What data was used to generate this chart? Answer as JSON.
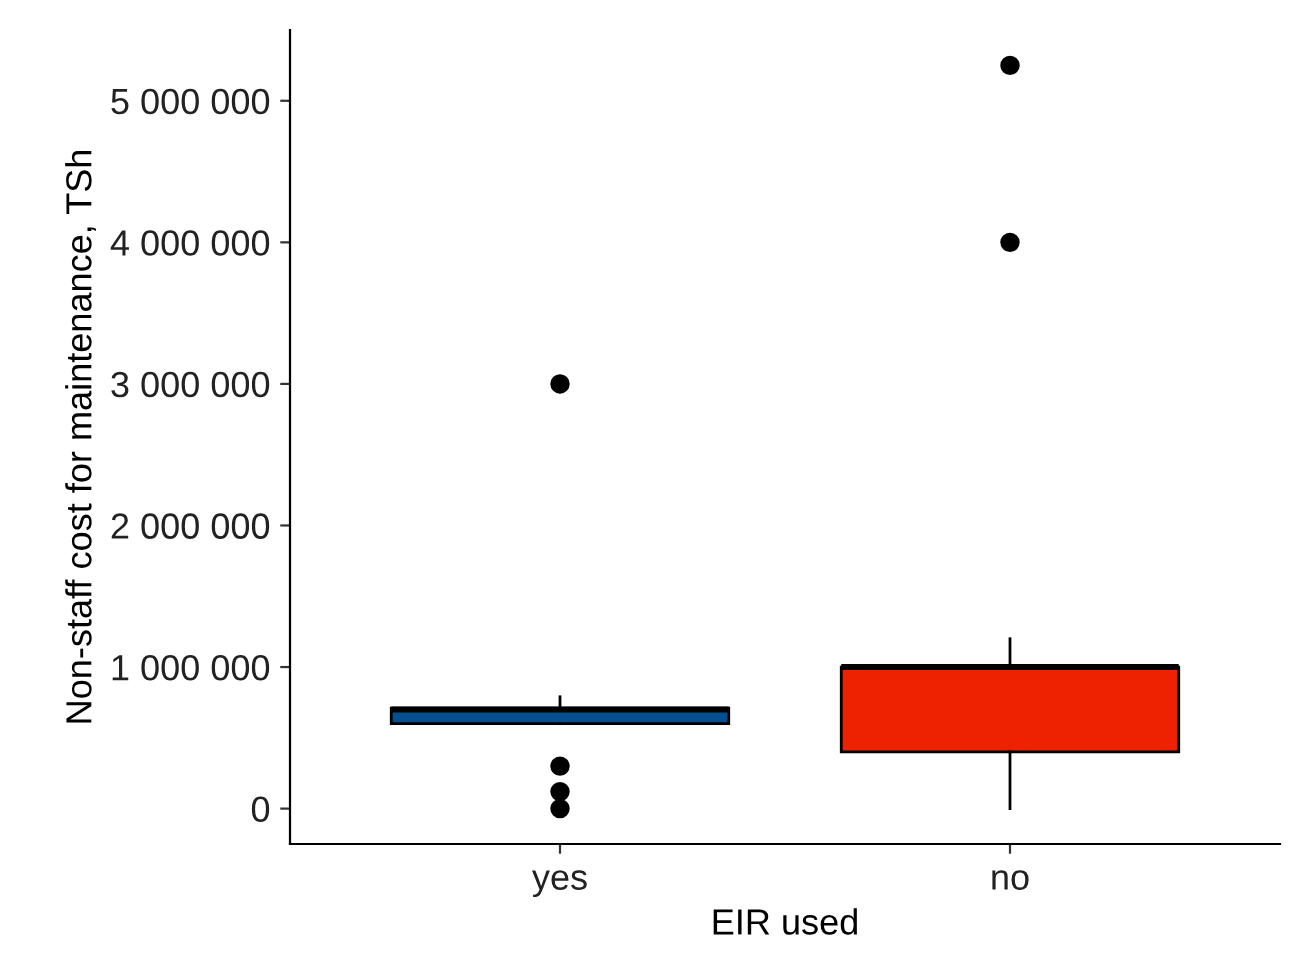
{
  "chart_data": {
    "type": "box",
    "xlabel": "EIR used",
    "ylabel": "Non-staff cost for maintenance, TSh",
    "categories": [
      "yes",
      "no"
    ],
    "colors": [
      "#034f8f",
      "#ee2200"
    ],
    "boxes": [
      {
        "low": 600000,
        "q1": 600000,
        "median": 700000,
        "q3": 710000,
        "high": 790000,
        "outliers": [
          3000000,
          300000,
          120000,
          0
        ]
      },
      {
        "low": 0,
        "q1": 400000,
        "median": 1000000,
        "q3": 1000000,
        "high": 1200000,
        "outliers": [
          5250000,
          4000000
        ]
      }
    ],
    "ylim": [
      -250000,
      5500000
    ],
    "yticks": [
      {
        "value": 0,
        "label": "0"
      },
      {
        "value": 1000000,
        "label": "1 000 000"
      },
      {
        "value": 2000000,
        "label": "2 000 000"
      },
      {
        "value": 3000000,
        "label": "3 000 000"
      },
      {
        "value": 4000000,
        "label": "4 000 000"
      },
      {
        "value": 5000000,
        "label": "5 000 000"
      }
    ],
    "grid": false
  }
}
